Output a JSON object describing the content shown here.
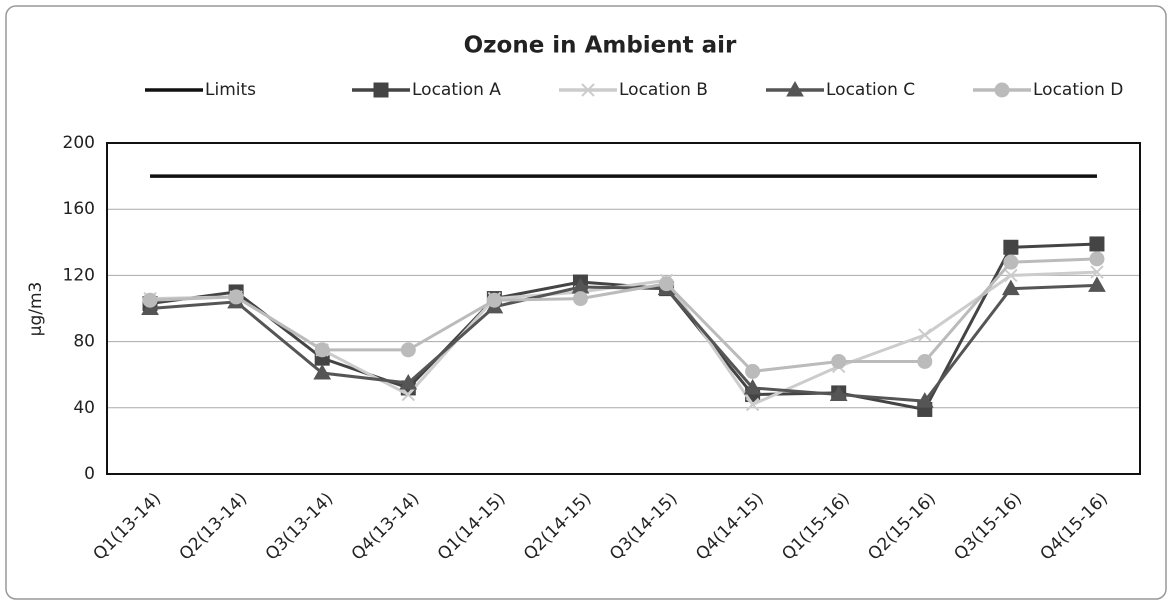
{
  "chart_data": {
    "type": "line",
    "title": "Ozone in Ambient air",
    "y_label": "µg/m3",
    "categories": [
      "Q1(13-14)",
      "Q2(13-14)",
      "Q3(13-14)",
      "Q4(13-14)",
      "Q1(14-15)",
      "Q2(14-15)",
      "Q3(14-15)",
      "Q4(14-15)",
      "Q1(15-16)",
      "Q2(15-16)",
      "Q3(15-16)",
      "Q4(15-16)"
    ],
    "series": [
      {
        "name": "Limits",
        "color": "#111111",
        "values": [
          180,
          180,
          180,
          180,
          180,
          180,
          180,
          180,
          180,
          180,
          180,
          180
        ]
      },
      {
        "name": "Location A",
        "color": "#444444",
        "marker": "square",
        "values": [
          103,
          110,
          70,
          52,
          106,
          116,
          112,
          48,
          49,
          39,
          137,
          139
        ]
      },
      {
        "name": "Location B",
        "color": "#cccccc",
        "marker": "x",
        "values": [
          106,
          107,
          75,
          48,
          106,
          110,
          117,
          42,
          65,
          84,
          120,
          122
        ]
      },
      {
        "name": "Location C",
        "color": "#555555",
        "marker": "triangle",
        "values": [
          100,
          104,
          61,
          55,
          101,
          113,
          112,
          52,
          48,
          44,
          112,
          114
        ]
      },
      {
        "name": "Location D",
        "color": "#bbbbbb",
        "marker": "circle",
        "values": [
          105,
          107,
          75,
          75,
          105,
          106,
          115,
          62,
          68,
          68,
          128,
          130
        ]
      }
    ],
    "ylim": [
      0,
      200
    ],
    "yticks": [
      0,
      40,
      80,
      120,
      160,
      200
    ],
    "grid": true,
    "legend": "top"
  }
}
